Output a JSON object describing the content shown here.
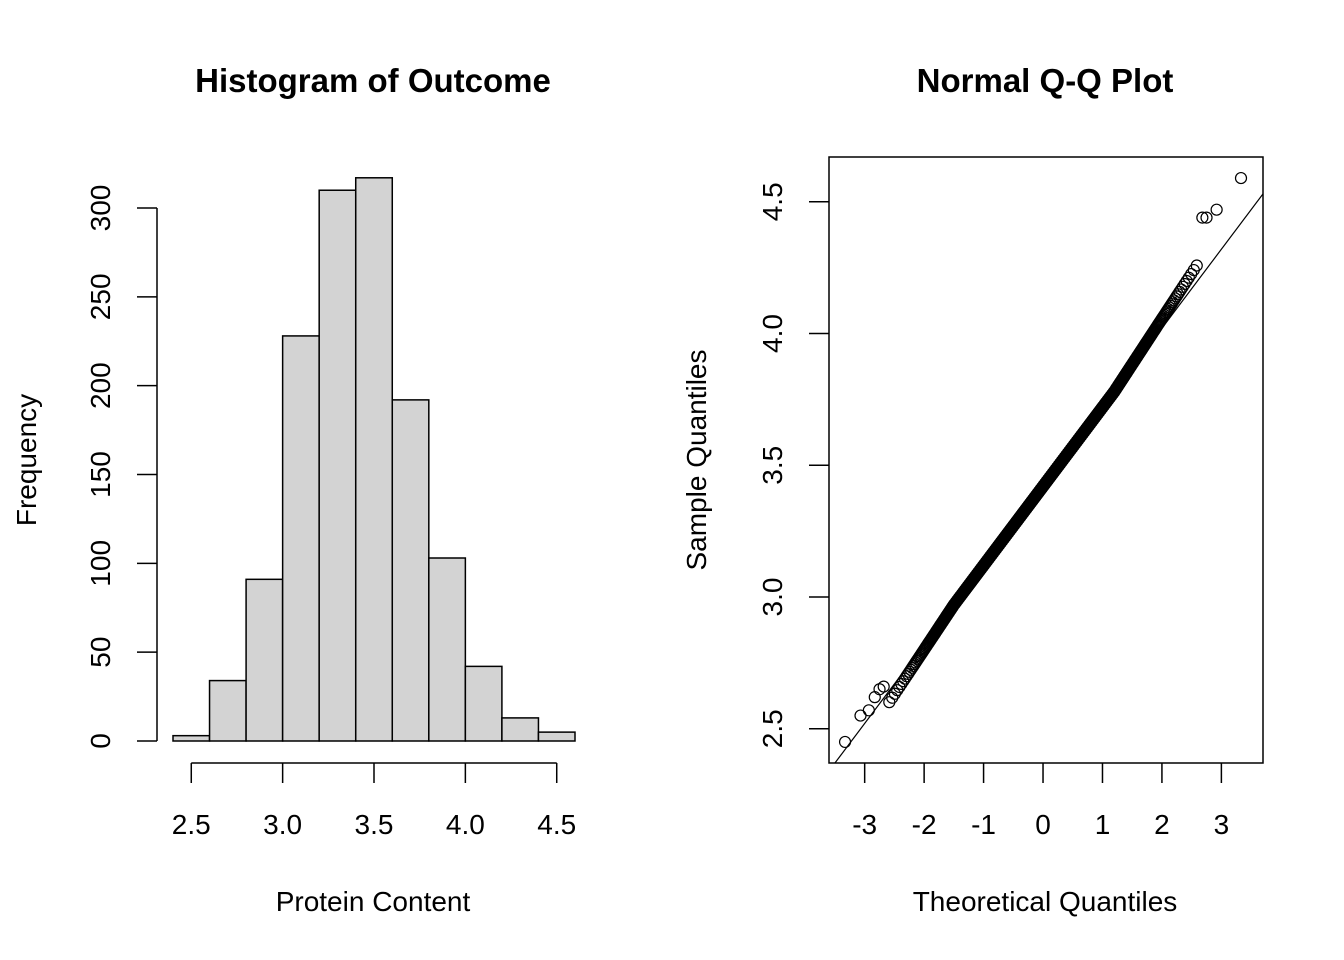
{
  "chart_data": [
    {
      "type": "bar",
      "subtype": "histogram",
      "title": "Histogram of Outcome",
      "xlabel": "Protein Content",
      "ylabel": "Frequency",
      "bin_edges": [
        2.4,
        2.6,
        2.8,
        3.0,
        3.2,
        3.4,
        3.6,
        3.8,
        4.0,
        4.2,
        4.4,
        4.6
      ],
      "values": [
        3,
        34,
        91,
        228,
        310,
        317,
        192,
        103,
        42,
        13,
        5
      ],
      "xlim": [
        2.4,
        4.6
      ],
      "ylim": [
        0,
        320
      ],
      "xticks": [
        "2.5",
        "3.0",
        "3.5",
        "4.0",
        "4.5"
      ],
      "xtick_values": [
        2.5,
        3.0,
        3.5,
        4.0,
        4.5
      ],
      "yticks": [
        "0",
        "50",
        "100",
        "150",
        "200",
        "250",
        "300"
      ],
      "ytick_values": [
        0,
        50,
        100,
        150,
        200,
        250,
        300
      ],
      "bar_fill": "#d3d3d3",
      "bar_stroke": "#000000",
      "grid": false
    },
    {
      "type": "scatter",
      "subtype": "qq-plot",
      "title": "Normal Q-Q Plot",
      "xlabel": "Theoretical Quantiles",
      "ylabel": "Sample Quantiles",
      "xlim": [
        -3.6,
        3.7
      ],
      "ylim": [
        2.37,
        4.67
      ],
      "xticks": [
        "-3",
        "-2",
        "-1",
        "0",
        "1",
        "2",
        "3"
      ],
      "xtick_values": [
        -3,
        -2,
        -1,
        0,
        1,
        2,
        3
      ],
      "yticks": [
        "2.5",
        "3.0",
        "3.5",
        "4.0",
        "4.5"
      ],
      "ytick_values": [
        2.5,
        3.0,
        3.5,
        4.0,
        4.5
      ],
      "reference_line": {
        "intercept": 3.42,
        "slope": 0.3
      },
      "points_n": 1338,
      "points_model": {
        "center": 3.42,
        "scale": 0.3,
        "lower_tail": -0.04,
        "upper_tail": 0.045
      },
      "extreme_points": [
        {
          "x": -3.33,
          "y": 2.45
        },
        {
          "x": -3.07,
          "y": 2.55
        },
        {
          "x": -2.93,
          "y": 2.57
        },
        {
          "x": -2.83,
          "y": 2.62
        },
        {
          "x": -2.75,
          "y": 2.65
        },
        {
          "x": -2.68,
          "y": 2.66
        },
        {
          "x": 2.68,
          "y": 4.44
        },
        {
          "x": 2.75,
          "y": 4.44
        },
        {
          "x": 2.92,
          "y": 4.47
        },
        {
          "x": 3.33,
          "y": 4.59
        }
      ],
      "marker": "open-circle",
      "grid": false,
      "box": true
    }
  ]
}
